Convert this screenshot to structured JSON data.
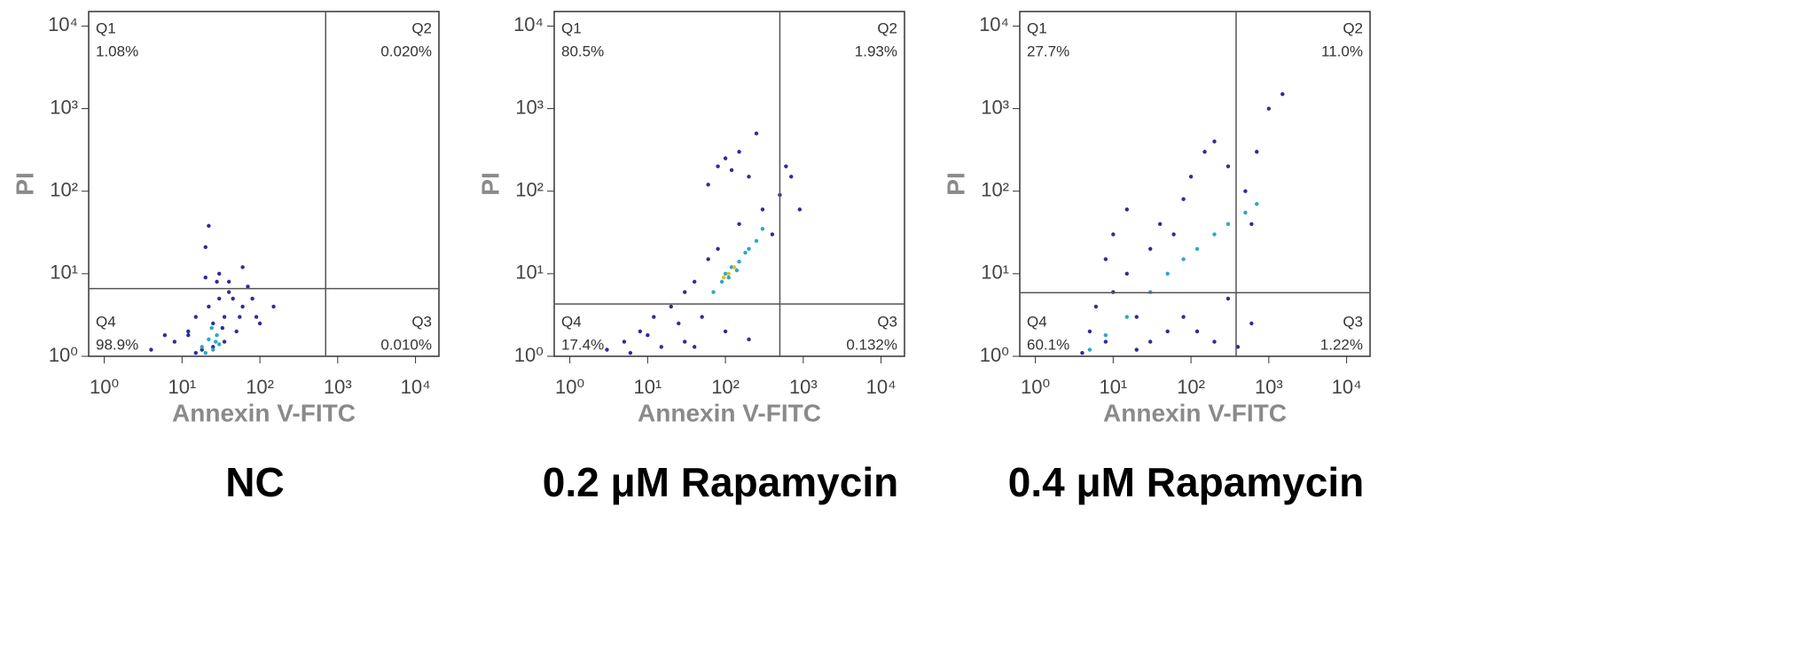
{
  "chart_data": [
    {
      "type": "scatter",
      "title": "NC",
      "x_label": "Annexin V-FITC",
      "y_label": "PI",
      "log_x": true,
      "log_y": true,
      "xlim": [
        0.63,
        20000
      ],
      "ylim": [
        1,
        15000
      ],
      "xticks": [
        {
          "value": 1,
          "label": "10⁰"
        },
        {
          "value": 10,
          "label": "10¹"
        },
        {
          "value": 100,
          "label": "10²"
        },
        {
          "value": 1000,
          "label": "10³"
        },
        {
          "value": 10000,
          "label": "10⁴"
        }
      ],
      "yticks": [
        {
          "value": 1,
          "label": "10⁰"
        },
        {
          "value": 10,
          "label": "10¹"
        },
        {
          "value": 100,
          "label": "10²"
        },
        {
          "value": 1000,
          "label": "10³"
        },
        {
          "value": 10000,
          "label": "10⁴"
        }
      ],
      "x_gate": 700,
      "y_gate": 6.6,
      "quadrants": [
        {
          "name": "Q1",
          "label": "1.08%"
        },
        {
          "name": "Q2",
          "label": "0.020%"
        },
        {
          "name": "Q3",
          "label": "0.010%"
        },
        {
          "name": "Q4",
          "label": "98.9%"
        }
      ],
      "series": [
        {
          "color": "#2e2c9a",
          "x": [
            8,
            12,
            15,
            18,
            22,
            25,
            30,
            35,
            40,
            50,
            60,
            70,
            90,
            15,
            20,
            28,
            45,
            55,
            12,
            25,
            35,
            80,
            4,
            6,
            30,
            20,
            40,
            60,
            100,
            150,
            22,
            33
          ],
          "y": [
            1.5,
            2,
            3,
            1.2,
            4,
            2.5,
            5,
            3,
            6,
            2,
            4,
            7,
            3,
            1.1,
            9,
            8,
            5,
            3,
            1.8,
            1.3,
            1.5,
            5,
            1.2,
            1.8,
            10,
            21,
            8,
            12,
            2.5,
            4,
            38,
            2.2
          ]
        },
        {
          "color": "#2aa8c8",
          "x": [
            18,
            22,
            25,
            28,
            30,
            20,
            24,
            27
          ],
          "y": [
            1.3,
            1.6,
            1.2,
            1.8,
            1.4,
            1.1,
            2.2,
            1.5
          ]
        }
      ]
    },
    {
      "type": "scatter",
      "title": "0.2 μM Rapamycin",
      "x_label": "Annexin V-FITC",
      "y_label": "PI",
      "log_x": true,
      "log_y": true,
      "xlim": [
        0.63,
        20000
      ],
      "ylim": [
        1,
        15000
      ],
      "xticks": [
        {
          "value": 1,
          "label": "10⁰"
        },
        {
          "value": 10,
          "label": "10¹"
        },
        {
          "value": 100,
          "label": "10²"
        },
        {
          "value": 1000,
          "label": "10³"
        },
        {
          "value": 10000,
          "label": "10⁴"
        }
      ],
      "yticks": [
        {
          "value": 1,
          "label": "10⁰"
        },
        {
          "value": 10,
          "label": "10¹"
        },
        {
          "value": 100,
          "label": "10²"
        },
        {
          "value": 1000,
          "label": "10³"
        },
        {
          "value": 10000,
          "label": "10⁴"
        }
      ],
      "x_gate": 500,
      "y_gate": 4.3,
      "quadrants": [
        {
          "name": "Q1",
          "label": "80.5%"
        },
        {
          "name": "Q2",
          "label": "1.93%"
        },
        {
          "name": "Q3",
          "label": "0.132%"
        },
        {
          "name": "Q4",
          "label": "17.4%"
        }
      ],
      "series": [
        {
          "color": "#2e2c9a",
          "x": [
            3,
            5,
            8,
            12,
            20,
            30,
            15,
            25,
            40,
            50,
            6,
            10,
            60,
            80,
            150,
            300,
            500,
            700,
            80,
            100,
            120,
            150,
            200,
            60,
            250,
            400,
            600,
            900,
            40,
            30,
            100,
            200
          ],
          "y": [
            1.2,
            1.5,
            2,
            3,
            4,
            6,
            1.3,
            2.5,
            8,
            3,
            1.1,
            1.8,
            15,
            20,
            40,
            60,
            90,
            150,
            200,
            250,
            180,
            300,
            150,
            120,
            500,
            30,
            200,
            60,
            1.3,
            1.5,
            2,
            1.6
          ]
        },
        {
          "color": "#2aa8c8",
          "x": [
            70,
            90,
            100,
            120,
            150,
            180,
            200,
            250,
            110,
            140,
            300
          ],
          "y": [
            6,
            8,
            10,
            12,
            14,
            18,
            20,
            25,
            9,
            11,
            35
          ]
        },
        {
          "color": "#e0c020",
          "x": [
            110,
            130,
            95
          ],
          "y": [
            10,
            12,
            9
          ]
        }
      ]
    },
    {
      "type": "scatter",
      "title": "0.4 μM Rapamycin",
      "x_label": "Annexin V-FITC",
      "y_label": "PI",
      "log_x": true,
      "log_y": true,
      "xlim": [
        0.63,
        20000
      ],
      "ylim": [
        1,
        15000
      ],
      "xticks": [
        {
          "value": 1,
          "label": "10⁰"
        },
        {
          "value": 10,
          "label": "10¹"
        },
        {
          "value": 100,
          "label": "10²"
        },
        {
          "value": 1000,
          "label": "10³"
        },
        {
          "value": 10000,
          "label": "10⁴"
        }
      ],
      "yticks": [
        {
          "value": 1,
          "label": "10⁰"
        },
        {
          "value": 10,
          "label": "10¹"
        },
        {
          "value": 100,
          "label": "10²"
        },
        {
          "value": 1000,
          "label": "10³"
        },
        {
          "value": 10000,
          "label": "10⁴"
        }
      ],
      "x_gate": 380,
      "y_gate": 5.9,
      "quadrants": [
        {
          "name": "Q1",
          "label": "27.7%"
        },
        {
          "name": "Q2",
          "label": "11.0%"
        },
        {
          "name": "Q3",
          "label": "1.22%"
        },
        {
          "name": "Q4",
          "label": "60.1%"
        }
      ],
      "series": [
        {
          "color": "#2e2c9a",
          "x": [
            4,
            5,
            6,
            8,
            10,
            15,
            20,
            30,
            40,
            60,
            80,
            100,
            150,
            200,
            300,
            500,
            700,
            1000,
            20,
            30,
            50,
            80,
            120,
            200,
            400,
            600,
            10,
            15,
            8,
            300,
            600,
            1500
          ],
          "y": [
            1.1,
            2,
            4,
            1.5,
            6,
            10,
            3,
            20,
            40,
            30,
            80,
            150,
            300,
            400,
            200,
            100,
            300,
            1000,
            1.2,
            1.5,
            2,
            3,
            2,
            1.5,
            1.3,
            2.5,
            30,
            60,
            15,
            5,
            40,
            1500
          ]
        },
        {
          "color": "#2aa8c8",
          "x": [
            5,
            8,
            15,
            30,
            50,
            80,
            120,
            200,
            300,
            500,
            700
          ],
          "y": [
            1.2,
            1.8,
            3,
            6,
            10,
            15,
            20,
            30,
            40,
            55,
            70
          ]
        }
      ]
    }
  ]
}
